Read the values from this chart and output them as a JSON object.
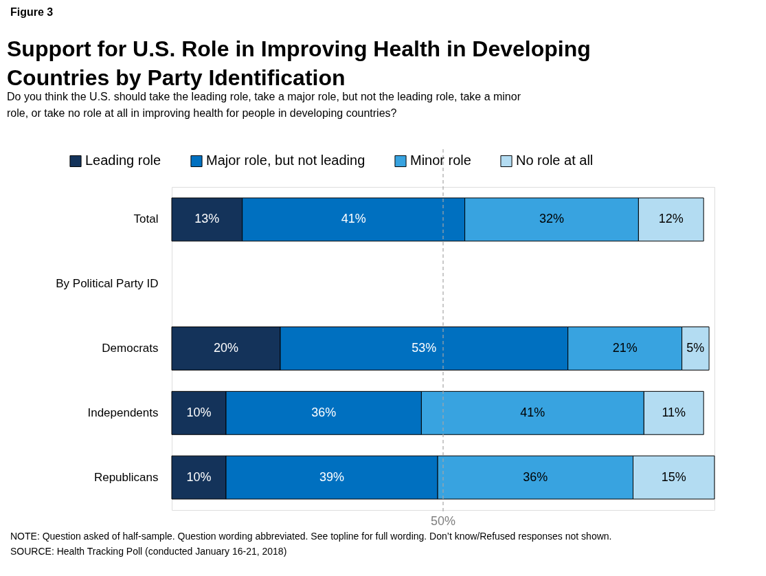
{
  "chart_data": {
    "type": "bar",
    "orientation": "horizontal",
    "stacked": true,
    "title": "Support for U.S. Role in Improving Health in Developing Countries by Party Identification",
    "subtitle": "Do you think the U.S. should take the leading role, take a major role, but not the leading role, take a minor role, or take no role at all in improving health for people in developing countries?",
    "categories": [
      "Total",
      "By Political Party ID",
      "Democrats",
      "Independents",
      "Republicans"
    ],
    "series": [
      {
        "name": "Leading role",
        "color": "#14335a",
        "values": [
          13,
          null,
          20,
          10,
          10
        ],
        "value_labels": [
          "13%",
          null,
          "20%",
          "10%",
          "10%"
        ]
      },
      {
        "name": "Major role, but not leading",
        "color": "#0070c0",
        "values": [
          41,
          null,
          53,
          36,
          39
        ],
        "value_labels": [
          "41%",
          null,
          "53%",
          "36%",
          "39%"
        ]
      },
      {
        "name": "Minor role",
        "color": "#38a3e0",
        "values": [
          32,
          null,
          21,
          41,
          36
        ],
        "value_labels": [
          "32%",
          null,
          "21%",
          "41%",
          "36%"
        ]
      },
      {
        "name": "No role at all",
        "color": "#b3dcf2",
        "values": [
          12,
          null,
          5,
          11,
          15
        ],
        "value_labels": [
          "12%",
          null,
          "5%",
          "11%",
          "15%"
        ]
      }
    ],
    "xlim": [
      0,
      100
    ],
    "tick_labels": "y",
    "grid": false,
    "legend": "top",
    "ref_lines": [
      {
        "axis": "x",
        "value": 50,
        "label": "50%",
        "color": "#a6a6a6",
        "line_style": "dashed"
      }
    ],
    "annotations": [
      "Figure 3",
      "NOTE: Question asked of half-sample. Question wording abbreviated. See topline for full wording. Don’t know/Refused responses not shown.",
      "SOURCE: Health Tracking Poll (conducted January 16-21, 2018)"
    ]
  }
}
